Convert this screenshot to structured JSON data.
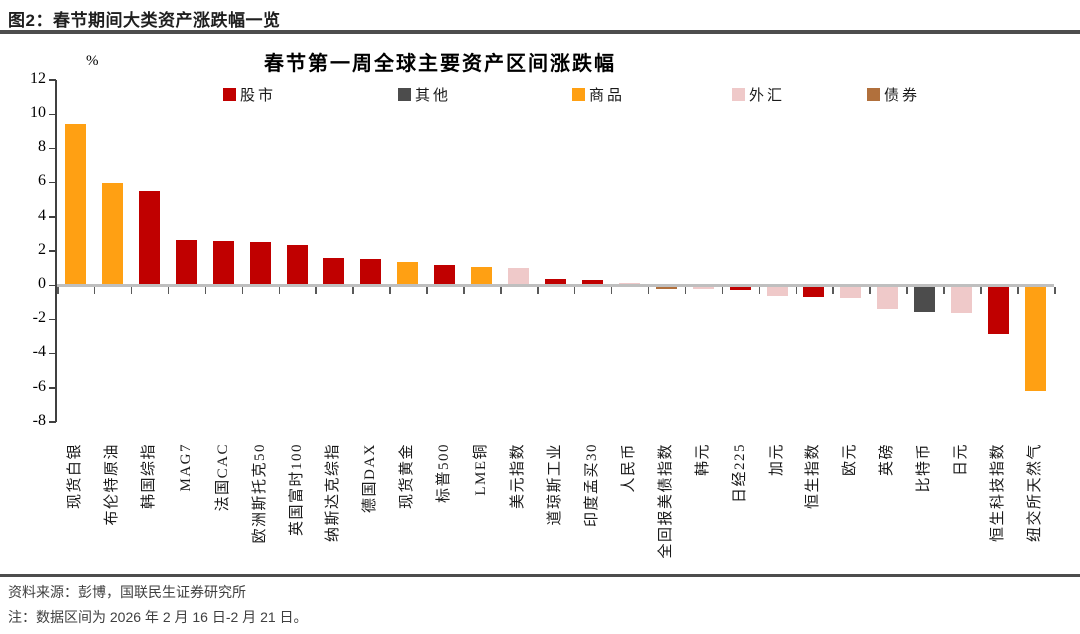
{
  "figure": {
    "caption": "图2：春节期间大类资产涨跌幅一览"
  },
  "chart_data": {
    "type": "bar",
    "title": "春节第一周全球主要资产区间涨跌幅",
    "unit_label": "%",
    "ylim": [
      -8,
      12
    ],
    "ytick_interval": 2,
    "yticks": [
      12,
      10,
      8,
      6,
      4,
      2,
      0,
      -2,
      -4,
      -6,
      -8
    ],
    "grid": false,
    "legend_position": "top",
    "legend": [
      {
        "key": "stock",
        "label": "股市"
      },
      {
        "key": "other",
        "label": "其他"
      },
      {
        "key": "commodity",
        "label": "商品"
      },
      {
        "key": "fx",
        "label": "外汇"
      },
      {
        "key": "bond",
        "label": "债券"
      }
    ],
    "colors": {
      "stock": "#C00000",
      "other": "#4C4C4C",
      "commodity": "#FFA013",
      "fx": "#EFC9C9",
      "bond": "#B1703C"
    },
    "categories": [
      "现货白银",
      "布伦特原油",
      "韩国综指",
      "MAG7",
      "法国CAC",
      "欧洲斯托克50",
      "英国富时100",
      "纳斯达克综指",
      "德国DAX",
      "现货黄金",
      "标普500",
      "LME铜",
      "美元指数",
      "道琼斯工业",
      "印度孟买30",
      "人民币",
      "全回报美债指数",
      "韩元",
      "日经225",
      "加元",
      "恒生指数",
      "欧元",
      "英磅",
      "比特币",
      "日元",
      "恒生科技指数",
      "纽交所天然气"
    ],
    "series_types": [
      "commodity",
      "commodity",
      "stock",
      "stock",
      "stock",
      "stock",
      "stock",
      "stock",
      "stock",
      "commodity",
      "stock",
      "commodity",
      "fx",
      "stock",
      "stock",
      "fx",
      "bond",
      "fx",
      "stock",
      "fx",
      "stock",
      "fx",
      "fx",
      "other",
      "fx",
      "stock",
      "commodity"
    ],
    "values": [
      9.35,
      5.9,
      5.45,
      2.6,
      2.5,
      2.45,
      2.3,
      1.5,
      1.45,
      1.3,
      1.1,
      1.0,
      0.95,
      0.3,
      0.25,
      0.05,
      -0.12,
      -0.15,
      -0.2,
      -0.55,
      -0.6,
      -0.7,
      -1.3,
      -1.5,
      -1.55,
      -2.8,
      -6.1
    ]
  },
  "footer": {
    "source": "资料来源：彭博，国联民生证券研究所",
    "note": "注：数据区间为 2026 年 2 月 16 日-2 月 21 日。"
  }
}
